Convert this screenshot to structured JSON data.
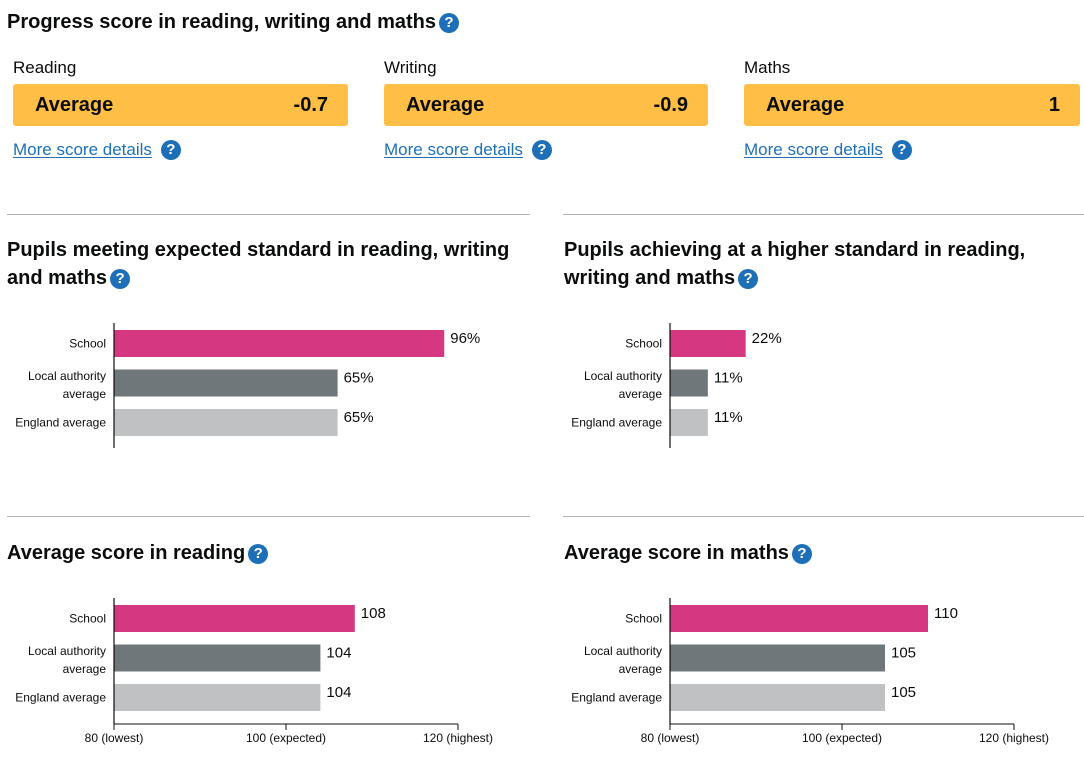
{
  "progress": {
    "title": "Progress score in reading, writing and maths",
    "help_icon": "question-circle-icon",
    "items": [
      {
        "subject": "Reading",
        "band": "Average",
        "score": "-0.7",
        "link": "More score details"
      },
      {
        "subject": "Writing",
        "band": "Average",
        "score": "-0.9",
        "link": "More score details"
      },
      {
        "subject": "Maths",
        "band": "Average",
        "score": "1",
        "link": "More score details"
      }
    ],
    "band_color": "#ffbf47"
  },
  "colors": {
    "school": "#d53880",
    "local_authority": "#6f777b",
    "england": "#bfc1c3",
    "link": "#1d70b8"
  },
  "sections": {
    "expected": {
      "title_line1": "Pupils meeting expected standard in reading, writing",
      "title_line2": "and maths"
    },
    "higher": {
      "title_line1": "Pupils achieving at a higher standard in reading,",
      "title_line2": "writing and maths"
    },
    "reading": {
      "title": "Average score in reading"
    },
    "maths": {
      "title": "Average score in maths"
    }
  },
  "chart_data": [
    {
      "type": "bar",
      "orientation": "horizontal",
      "categories": [
        "School",
        "Local authority average",
        "England average"
      ],
      "values": [
        96,
        65,
        65
      ],
      "value_labels": [
        "96%",
        "65%",
        "65%"
      ],
      "xlim": [
        0,
        100
      ]
    },
    {
      "type": "bar",
      "orientation": "horizontal",
      "categories": [
        "School",
        "Local authority average",
        "England average"
      ],
      "values": [
        22,
        11,
        11
      ],
      "value_labels": [
        "22%",
        "11%",
        "11%"
      ],
      "xlim": [
        0,
        100
      ]
    },
    {
      "type": "bar",
      "orientation": "horizontal",
      "categories": [
        "School",
        "Local authority average",
        "England average"
      ],
      "values": [
        108,
        104,
        104
      ],
      "value_labels": [
        "108",
        "104",
        "104"
      ],
      "xlim": [
        80,
        120
      ],
      "ticks": [
        {
          "value": 80,
          "label": "80 (lowest)"
        },
        {
          "value": 100,
          "label": "100 (expected)"
        },
        {
          "value": 120,
          "label": "120 (highest)"
        }
      ]
    },
    {
      "type": "bar",
      "orientation": "horizontal",
      "categories": [
        "School",
        "Local authority average",
        "England average"
      ],
      "values": [
        110,
        105,
        105
      ],
      "value_labels": [
        "110",
        "105",
        "105"
      ],
      "xlim": [
        80,
        120
      ],
      "ticks": [
        {
          "value": 80,
          "label": "80 (lowest)"
        },
        {
          "value": 100,
          "label": "100 (expected)"
        },
        {
          "value": 120,
          "label": "120 (highest)"
        }
      ]
    }
  ]
}
